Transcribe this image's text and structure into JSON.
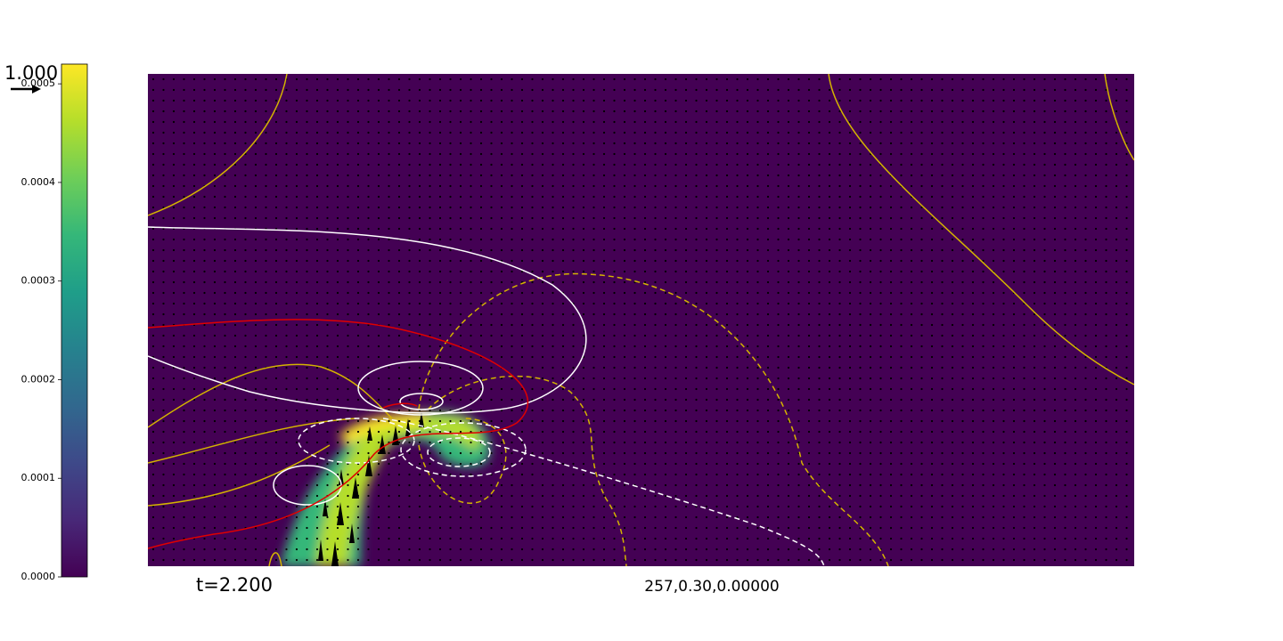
{
  "chart_data": {
    "type": "heatmap",
    "colorbar": {
      "clim": [
        0,
        0.00052
      ],
      "ticks": [
        {
          "value": 0,
          "label": "0.0000"
        },
        {
          "value": 0.0001,
          "label": "0.0001"
        },
        {
          "value": 0.0002,
          "label": "0.0002"
        },
        {
          "value": 0.0003,
          "label": "0.0003"
        },
        {
          "value": 0.0004,
          "label": "0.0004"
        },
        {
          "value": 0.0005,
          "label": "0.0005"
        }
      ],
      "colors": [
        "#440154",
        "#482878",
        "#3e4989",
        "#31688e",
        "#26828e",
        "#1f9e89",
        "#35b779",
        "#6ece58",
        "#b5de2b",
        "#fde725"
      ]
    },
    "quiver_key": "1.000",
    "annotations": [
      "t=2.200",
      "257,0.30,0.00000"
    ]
  }
}
